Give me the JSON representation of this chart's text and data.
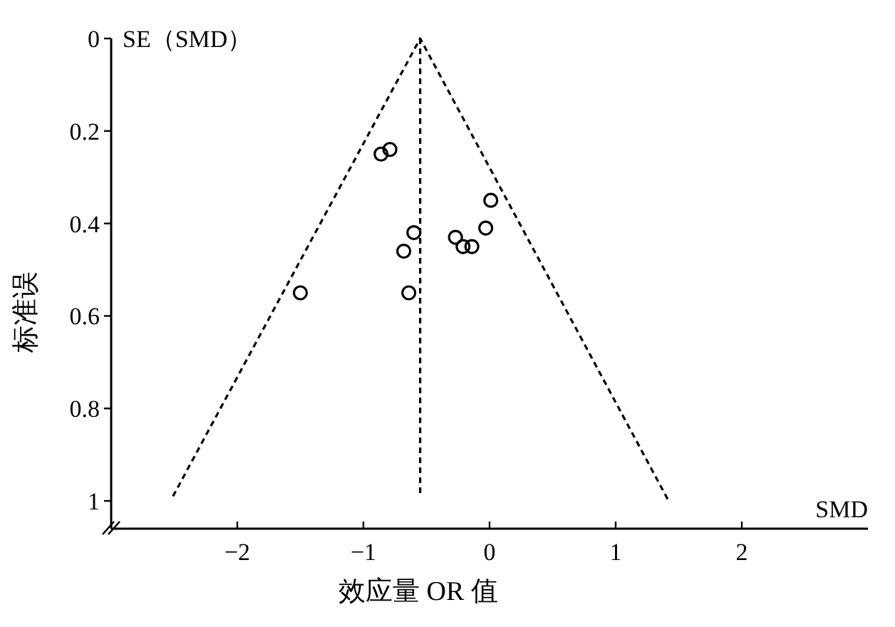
{
  "chart_data": {
    "type": "scatter",
    "xlabel": "效应量 OR 值",
    "ylabel": "标准误",
    "annotations": [
      "SE（SMD）",
      "SMD"
    ],
    "xlim": [
      -3,
      3
    ],
    "ylim": [
      1.06,
      0
    ],
    "xticks": [
      {
        "value": -2,
        "label": "−2"
      },
      {
        "value": -1,
        "label": "−1"
      },
      0,
      1,
      2
    ],
    "yticks": [
      0,
      0.2,
      0.4,
      0.6,
      0.8,
      1
    ],
    "series": [
      {
        "color": "#000000",
        "marker": "circle",
        "x": [
          -0.86,
          -0.79,
          0.01,
          -0.03,
          -0.6,
          -0.27,
          -0.21,
          -0.14,
          -0.68,
          -1.5,
          -0.64
        ],
        "values": [
          0.25,
          0.24,
          0.35,
          0.41,
          0.42,
          0.43,
          0.45,
          0.45,
          0.46,
          0.55,
          0.55
        ]
      },
      {
        "type": "line",
        "color": "#000000",
        "marker": "none",
        "line_style": "dashed",
        "x": [
          -2.51,
          -0.55,
          1.42
        ],
        "values": [
          0.99,
          0,
          1.0
        ]
      },
      {
        "type": "line",
        "color": "#000000",
        "marker": "none",
        "line_style": "dashed",
        "x": [
          -0.55,
          -0.55
        ],
        "values": [
          0,
          0.99
        ]
      }
    ]
  }
}
